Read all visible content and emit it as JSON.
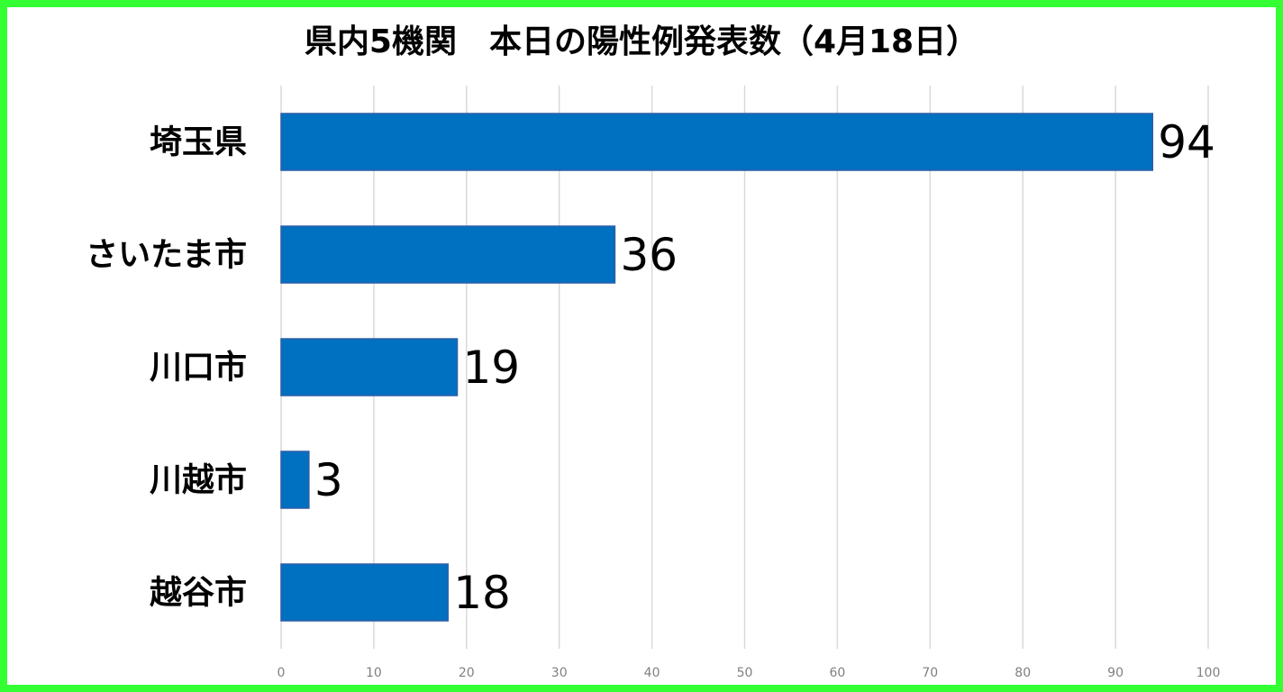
{
  "chart_data": {
    "type": "bar",
    "orientation": "horizontal",
    "title": "県内5機関　本日の陽性例発表数（4月18日）",
    "categories": [
      "埼玉県",
      "さいたま市",
      "川口市",
      "川越市",
      "越谷市"
    ],
    "values": [
      94,
      36,
      19,
      3,
      18
    ],
    "color": "#0070c0",
    "xlim": [
      0,
      100
    ],
    "xticks": [
      0,
      10,
      20,
      30,
      40,
      50,
      60,
      70,
      80,
      90,
      100
    ],
    "grid": true
  }
}
